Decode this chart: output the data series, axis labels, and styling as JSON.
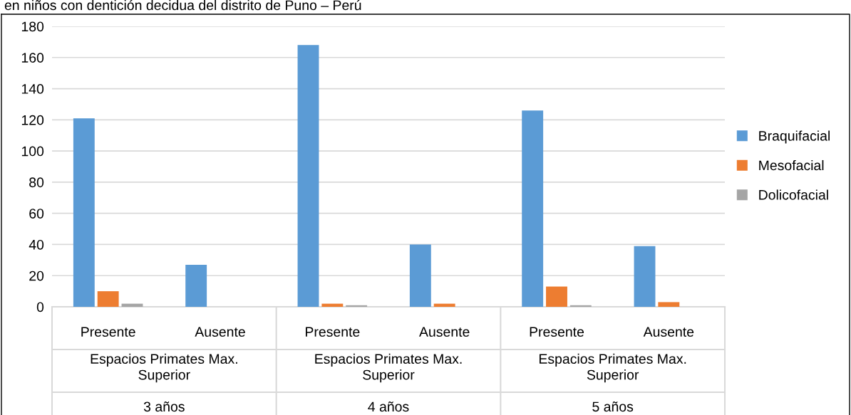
{
  "chart_data": {
    "type": "bar",
    "title": "en niños con dentición decidua del distrito de Puno – Perú",
    "categories": [
      "Presente",
      "Ausente",
      "Presente",
      "Ausente",
      "Presente",
      "Ausente"
    ],
    "series": [
      {
        "name": "Braquifacial",
        "color": "#5b9bd5",
        "values": [
          121,
          27,
          168,
          40,
          126,
          39
        ]
      },
      {
        "name": "Mesofacial",
        "color": "#ed7d31",
        "values": [
          10,
          0,
          2,
          2,
          13,
          3
        ]
      },
      {
        "name": "Dolicofacial",
        "color": "#a5a5a5",
        "values": [
          2,
          0,
          1,
          0,
          1,
          0
        ]
      }
    ],
    "annotations": [
      "Espacios Primates Max.\nSuperior",
      "Espacios Primates Max.\nSuperior",
      "Espacios Primates Max.\nSuperior",
      "3 años",
      "4 años",
      "5 años"
    ],
    "ylim": [
      0,
      180
    ],
    "yticks": [
      0,
      20,
      40,
      60,
      80,
      100,
      120,
      140,
      160,
      180
    ],
    "grid": "y",
    "legend": "right"
  }
}
